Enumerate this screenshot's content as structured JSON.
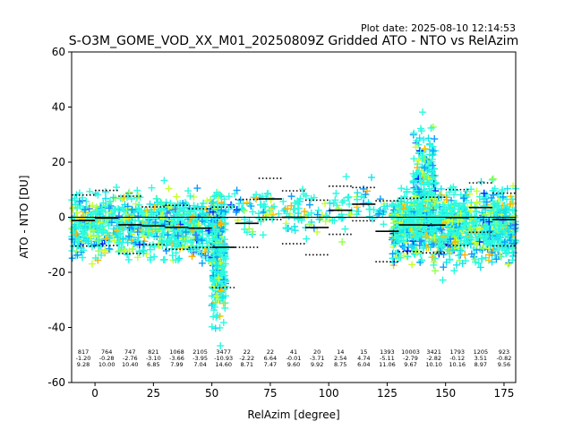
{
  "chart_data": {
    "type": "scatter",
    "title": "S-O3M_GOME_VOD_XX_M01_20250809Z Gridded ATO - NTO vs RelAzim",
    "plot_date": "Plot date: 2025-08-10 12:14:53",
    "xlabel": "RelAzim [degree]",
    "ylabel": "ATO - NTO [DU]",
    "xlim": [
      -10,
      180
    ],
    "ylim": [
      -60,
      60
    ],
    "xticks": [
      0,
      25,
      50,
      75,
      100,
      125,
      150,
      175
    ],
    "yticks": [
      -60,
      -40,
      -20,
      0,
      20,
      40,
      60
    ],
    "grid": false,
    "zero_line": 0,
    "bins": [
      {
        "center": -5,
        "count": "817",
        "mean": "-1.20",
        "std": "9.28",
        "mean_val": -1.2,
        "std_val": 9.28
      },
      {
        "center": 5,
        "count": "764",
        "mean": "-0.28",
        "std": "10.00",
        "mean_val": -0.28,
        "std_val": 10.0
      },
      {
        "center": 15,
        "count": "747",
        "mean": "-2.76",
        "std": "10.40",
        "mean_val": -2.76,
        "std_val": 10.4
      },
      {
        "center": 25,
        "count": "821",
        "mean": "-3.10",
        "std": "6.85",
        "mean_val": -3.1,
        "std_val": 6.85
      },
      {
        "center": 35,
        "count": "1068",
        "mean": "-3.66",
        "std": "7.99",
        "mean_val": -3.66,
        "std_val": 7.99
      },
      {
        "center": 45,
        "count": "2105",
        "mean": "-3.95",
        "std": "7.04",
        "mean_val": -3.95,
        "std_val": 7.04
      },
      {
        "center": 55,
        "count": "3477",
        "mean": "-10.93",
        "std": "14.60",
        "mean_val": -10.93,
        "std_val": 14.6
      },
      {
        "center": 65,
        "count": "22",
        "mean": "-2.22",
        "std": "8.71",
        "mean_val": -2.22,
        "std_val": 8.71
      },
      {
        "center": 75,
        "count": "22",
        "mean": "6.64",
        "std": "7.47",
        "mean_val": 6.64,
        "std_val": 7.47
      },
      {
        "center": 85,
        "count": "41",
        "mean": "-0.01",
        "std": "9.60",
        "mean_val": -0.01,
        "std_val": 9.6
      },
      {
        "center": 95,
        "count": "20",
        "mean": "-3.71",
        "std": "9.92",
        "mean_val": -3.71,
        "std_val": 9.92
      },
      {
        "center": 105,
        "count": "14",
        "mean": "2.54",
        "std": "8.75",
        "mean_val": 2.54,
        "std_val": 8.75
      },
      {
        "center": 115,
        "count": "15",
        "mean": "4.74",
        "std": "6.04",
        "mean_val": 4.74,
        "std_val": 6.04
      },
      {
        "center": 125,
        "count": "1393",
        "mean": "-5.11",
        "std": "11.06",
        "mean_val": -5.11,
        "std_val": 11.06
      },
      {
        "center": 135,
        "count": "10003",
        "mean": "-2.79",
        "std": "9.67",
        "mean_val": -2.79,
        "std_val": 9.67
      },
      {
        "center": 145,
        "count": "3421",
        "mean": "-2.82",
        "std": "10.10",
        "mean_val": -2.82,
        "std_val": 10.1
      },
      {
        "center": 155,
        "count": "1793",
        "mean": "-0.12",
        "std": "10.16",
        "mean_val": -0.12,
        "std_val": 10.16
      },
      {
        "center": 165,
        "count": "1205",
        "mean": "3.51",
        "std": "8.97",
        "mean_val": 3.51,
        "std_val": 8.97
      },
      {
        "center": 175,
        "count": "923",
        "mean": "-0.82",
        "std": "9.56",
        "mean_val": -0.82,
        "std_val": 9.56
      }
    ],
    "scatter_clusters": [
      {
        "x_range": [
          -10,
          55
        ],
        "y_center": -3,
        "y_spread": 16,
        "density": 900
      },
      {
        "x_range": [
          50,
          56
        ],
        "y_center": -15,
        "y_spread": 30,
        "density": 250
      },
      {
        "x_range": [
          57,
          125
        ],
        "y_center": 2,
        "y_spread": 12,
        "density": 180
      },
      {
        "x_range": [
          127,
          180
        ],
        "y_center": -3,
        "y_spread": 18,
        "density": 1100
      },
      {
        "x_range": [
          136,
          146
        ],
        "y_center": 12,
        "y_spread": 28,
        "density": 200
      }
    ],
    "marker_colors": [
      "#2afadf",
      "#16e3ea",
      "#0a9cfe",
      "#c8ff2f",
      "#93ff4b",
      "#ffc400",
      "#ffb000",
      "#0022ff",
      "#3c7dff"
    ]
  }
}
